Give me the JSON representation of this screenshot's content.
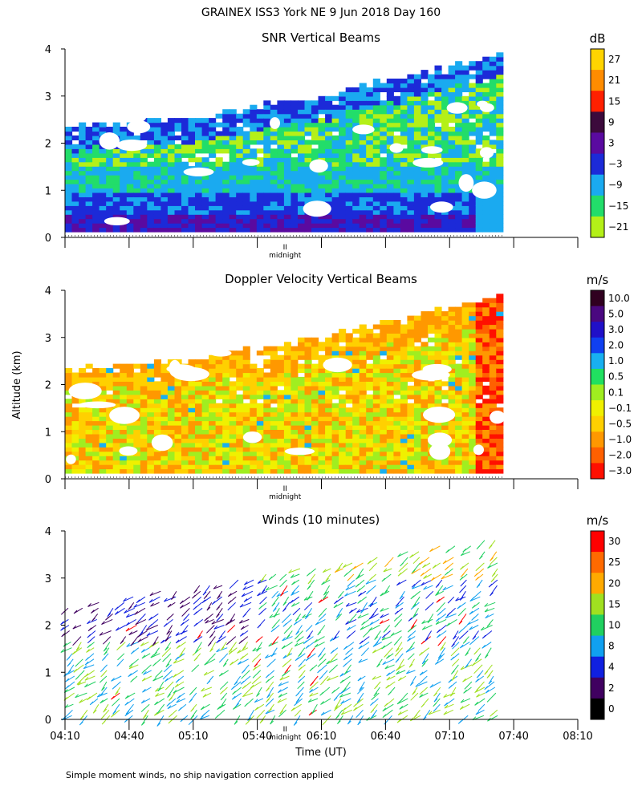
{
  "title": "GRAINEX ISS3 York NE   9 Jun 2018 Day 160",
  "footnote": "Simple moment winds, no ship navigation correction applied",
  "ylabel": "Altitude (km)",
  "xlabel": "Time (UT)",
  "midnight_label": "midnight",
  "midnight_marker": "II",
  "x_ticks": [
    "04:10",
    "04:40",
    "05:10",
    "05:40",
    "06:10",
    "06:40",
    "07:10",
    "07:40",
    "08:10"
  ],
  "y_ticks": [
    "0",
    "1",
    "2",
    "3",
    "4"
  ],
  "chart_data": [
    {
      "type": "heatmap",
      "title": "SNR Vertical Beams",
      "unit": "dB",
      "ylim": [
        0,
        4
      ],
      "xlim": [
        "04:10",
        "08:10"
      ],
      "data_extent": [
        "04:10",
        "07:35"
      ],
      "colorbar": {
        "labels": [
          "27",
          "21",
          "15",
          "9",
          "3",
          "−3",
          "−9",
          "−15",
          "−21"
        ],
        "colors": [
          "#ffd400",
          "#ff8c00",
          "#ff2000",
          "#3c0a3c",
          "#5a0aa0",
          "#1c2ad8",
          "#1aaaf0",
          "#22dd6a",
          "#b4f018"
        ]
      }
    },
    {
      "type": "heatmap",
      "title": "Doppler Velocity Vertical Beams",
      "unit": "m/s",
      "ylim": [
        0,
        4
      ],
      "xlim": [
        "04:10",
        "08:10"
      ],
      "data_extent": [
        "04:10",
        "07:35"
      ],
      "colorbar": {
        "labels": [
          "10.0",
          "5.0",
          "3.0",
          "2.0",
          "1.0",
          "0.5",
          "0.1",
          "−0.1",
          "−0.5",
          "−1.0",
          "−2.0",
          "−3.0"
        ],
        "colors": [
          "#300020",
          "#4a0880",
          "#2010c8",
          "#1040f0",
          "#18b0f0",
          "#20e060",
          "#a0ee20",
          "#f0f000",
          "#ffd000",
          "#ff9800",
          "#ff6000",
          "#ff1000"
        ]
      }
    },
    {
      "type": "wind-barbs",
      "title": "Winds (10 minutes)",
      "unit": "m/s",
      "ylim": [
        0,
        4
      ],
      "xlim": [
        "04:10",
        "08:10"
      ],
      "data_extent": [
        "04:10",
        "07:35"
      ],
      "colorbar": {
        "labels": [
          "30",
          "25",
          "20",
          "15",
          "10",
          "8",
          "4",
          "2",
          "0"
        ],
        "colors": [
          "#ff0000",
          "#ff6a00",
          "#ffaa00",
          "#a0e020",
          "#20d060",
          "#10a0f0",
          "#1020e0",
          "#400060",
          "#000000"
        ]
      }
    }
  ]
}
